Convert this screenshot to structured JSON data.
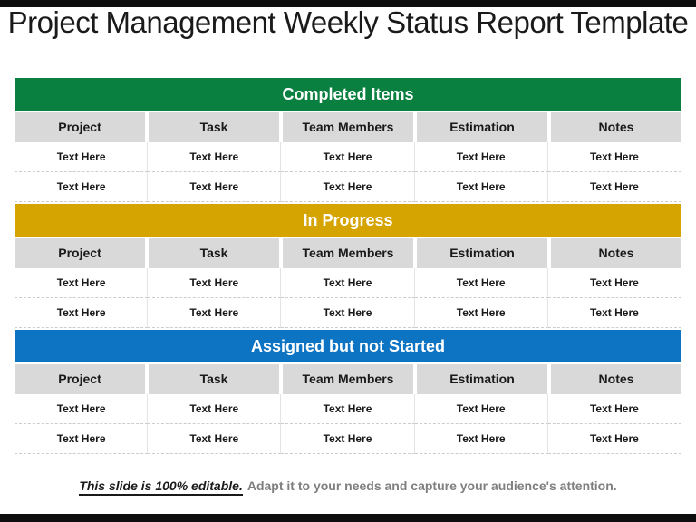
{
  "title": "Project Management Weekly Status Report Template",
  "table": {
    "columns": [
      "Project",
      "Task",
      "Team Members",
      "Estimation",
      "Notes"
    ],
    "sections": [
      {
        "label": "Completed Items",
        "color": "#0A8040",
        "rows": [
          [
            "Text Here",
            "Text Here",
            "Text Here",
            "Text Here",
            "Text Here"
          ],
          [
            "Text Here",
            "Text Here",
            "Text Here",
            "Text Here",
            "Text Here"
          ]
        ]
      },
      {
        "label": "In Progress",
        "color": "#D6A400",
        "rows": [
          [
            "Text Here",
            "Text Here",
            "Text Here",
            "Text Here",
            "Text Here"
          ],
          [
            "Text Here",
            "Text Here",
            "Text Here",
            "Text Here",
            "Text Here"
          ]
        ]
      },
      {
        "label": "Assigned but not Started",
        "color": "#0D73C3",
        "rows": [
          [
            "Text Here",
            "Text Here",
            "Text Here",
            "Text Here",
            "Text Here"
          ],
          [
            "Text Here",
            "Text Here",
            "Text Here",
            "Text Here",
            "Text Here"
          ]
        ]
      }
    ]
  },
  "footer": {
    "highlight": "This slide is 100% editable.",
    "rest": "Adapt it to your needs and capture your audience's attention."
  },
  "colors": {
    "completed_band": "#0A8040",
    "in_progress_band": "#D6A400",
    "assigned_band": "#0D73C3",
    "column_header_bg": "#D9D9D9",
    "edge_bar": "#0D0D0D",
    "footer_text": "#7F7F7F"
  }
}
